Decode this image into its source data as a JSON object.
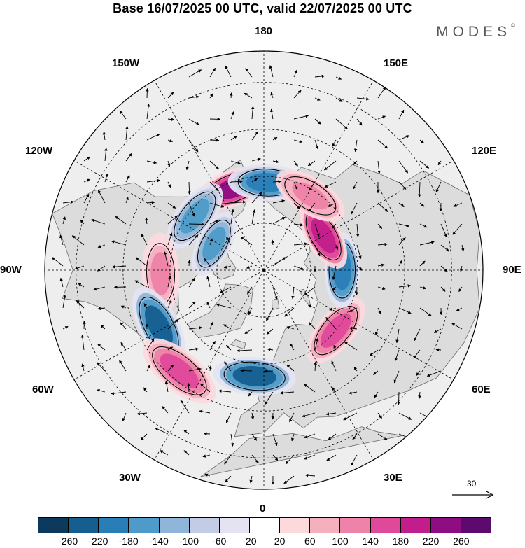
{
  "title": "Base 16/07/2025 00 UTC, valid 22/07/2025 00 UTC",
  "brand": "MODES",
  "brand_mark": "©",
  "longitudes": {
    "lon_180": "180",
    "lon_150E": "150E",
    "lon_120E": "120E",
    "lon_90E": "90E",
    "lon_60E": "60E",
    "lon_30E": "30E",
    "lon_0": "0",
    "lon_30W": "30W",
    "lon_60W": "60W",
    "lon_90W": "90W",
    "lon_120W": "120W",
    "lon_150W": "150W"
  },
  "reference_vector_label": "30",
  "colorbar": {
    "colors": [
      "#0d3a5c",
      "#155e8f",
      "#2a7eb8",
      "#4e9bc9",
      "#8fb6d8",
      "#c2cde5",
      "#e3e3f1",
      "#ffffff",
      "#fbd9dd",
      "#f5b0c0",
      "#ee82a8",
      "#e0489a",
      "#c21d8a",
      "#8e0d82",
      "#5c0a6e"
    ],
    "tick_labels": [
      "-260",
      "-220",
      "-180",
      "-140",
      "-100",
      "-60",
      "-20",
      "20",
      "60",
      "100",
      "140",
      "180",
      "220",
      "260"
    ]
  },
  "anomaly_centers": [
    {
      "name": "pink-center-bering",
      "lon": -160,
      "lat": 62,
      "sign": "positive",
      "magnitude": 230
    },
    {
      "name": "blue-center-chukchi",
      "lon": 178,
      "lat": 62,
      "sign": "negative",
      "magnitude": 190
    },
    {
      "name": "blue-center-canada-west",
      "lon": -128,
      "lat": 62,
      "sign": "negative",
      "magnitude": 170
    },
    {
      "name": "blue-center-canada-east",
      "lon": -118,
      "lat": 72,
      "sign": "negative",
      "magnitude": 160
    },
    {
      "name": "pink-center-hudson",
      "lon": -88,
      "lat": 57,
      "sign": "positive",
      "magnitude": 110
    },
    {
      "name": "blue-center-labrador",
      "lon": -62,
      "lat": 52,
      "sign": "negative",
      "magnitude": 220
    },
    {
      "name": "pink-center-atlantic",
      "lon": -40,
      "lat": 48,
      "sign": "positive",
      "magnitude": 140
    },
    {
      "name": "blue-center-uk",
      "lon": -5,
      "lat": 56,
      "sign": "negative",
      "magnitude": 220
    },
    {
      "name": "pink-center-west-russia",
      "lon": 50,
      "lat": 60,
      "sign": "positive",
      "magnitude": 150
    },
    {
      "name": "blue-center-siberia",
      "lon": 90,
      "lat": 65,
      "sign": "negative",
      "magnitude": 200
    },
    {
      "name": "pink-center-east-siberia",
      "lon": 120,
      "lat": 68,
      "sign": "positive",
      "magnitude": 200
    },
    {
      "name": "pink-center-yakutia",
      "lon": 148,
      "lat": 62,
      "sign": "positive",
      "magnitude": 120
    }
  ]
}
